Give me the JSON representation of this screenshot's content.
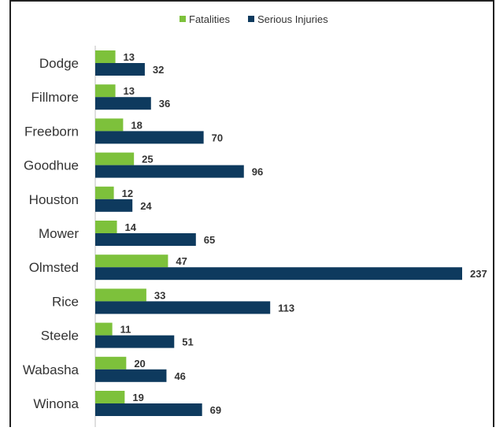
{
  "chart_data": {
    "type": "bar",
    "orientation": "horizontal",
    "title": "",
    "xlabel": "",
    "ylabel": "",
    "categories": [
      "Dodge",
      "Fillmore",
      "Freeborn",
      "Goodhue",
      "Houston",
      "Mower",
      "Olmsted",
      "Rice",
      "Steele",
      "Wabasha",
      "Winona"
    ],
    "series": [
      {
        "name": "Fatalities",
        "color": "#7dc13b",
        "values": [
          13,
          13,
          18,
          25,
          12,
          14,
          47,
          33,
          11,
          20,
          19
        ]
      },
      {
        "name": "Serious Injuries",
        "color": "#0e3a5e",
        "values": [
          32,
          36,
          70,
          96,
          24,
          65,
          237,
          113,
          51,
          46,
          69
        ]
      }
    ],
    "xlim": [
      0,
      237
    ],
    "grid": false,
    "legend_position": "top-center",
    "data_labels": true
  }
}
